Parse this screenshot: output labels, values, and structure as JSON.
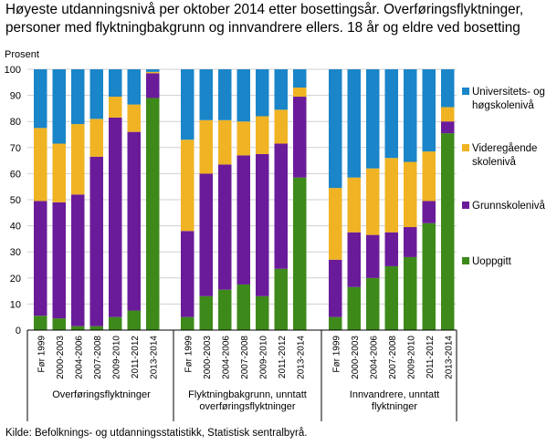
{
  "title": "Høyeste utdanningsnivå per oktober 2014 etter bosettingsår. Overføringsflyktninger, personer med flyktningbakgrunn og innvandrere ellers. 18 år og eldre ved bosetting",
  "source": "Kilde: Befolknings- og utdanningsstatistikk,  Statistisk sentralbyrå.",
  "chart_data": {
    "type": "bar",
    "stacked": true,
    "ylabel": "Prosent",
    "ylim": [
      0,
      100
    ],
    "yticks": [
      0,
      10,
      20,
      30,
      40,
      50,
      60,
      70,
      80,
      90,
      100
    ],
    "grid": true,
    "legend_position": "right",
    "categories": [
      "Før 1999",
      "2000-2003",
      "2004-2006",
      "2007-2008",
      "2009-2010",
      "2011-2012",
      "2013-2014"
    ],
    "groups": [
      {
        "name": "Overføringsflyktninger",
        "series": [
          {
            "name": "Uoppgitt",
            "values": [
              5.5,
              4.5,
              1.5,
              1.5,
              5,
              7.5,
              89
            ]
          },
          {
            "name": "Grunnskolenivå",
            "values": [
              44,
              44.5,
              50.5,
              65,
              76.5,
              68.5,
              9.5
            ]
          },
          {
            "name": "Videregående skolenivå",
            "values": [
              28,
              22.5,
              27,
              14.5,
              8,
              10.5,
              0.5
            ]
          },
          {
            "name": "Universitets- og høgskolenivå",
            "values": [
              22.5,
              28.5,
              21,
              19,
              10.5,
              13.5,
              1
            ]
          }
        ]
      },
      {
        "name": "Flyktningbakgrunn, unntatt overføringsflyktninger",
        "series": [
          {
            "name": "Uoppgitt",
            "values": [
              5,
              13,
              15.5,
              17.5,
              13,
              23.5,
              58.5
            ]
          },
          {
            "name": "Grunnskolenivå",
            "values": [
              33,
              47,
              48,
              49.5,
              54.5,
              48,
              31
            ]
          },
          {
            "name": "Videregående skolenivå",
            "values": [
              35,
              20.5,
              17,
              13,
              14.5,
              13,
              3.5
            ]
          },
          {
            "name": "Universitets- og høgskolenivå",
            "values": [
              27,
              19.5,
              19.5,
              20,
              18,
              15.5,
              7
            ]
          }
        ]
      },
      {
        "name": "Innvandrere, unntatt flyktninger",
        "series": [
          {
            "name": "Uoppgitt",
            "values": [
              5,
              16.5,
              20,
              24.5,
              28,
              41,
              75.5
            ]
          },
          {
            "name": "Grunnskolenivå",
            "values": [
              22,
              21,
              16.5,
              13,
              11.5,
              8.5,
              4.5
            ]
          },
          {
            "name": "Videregående skolenivå",
            "values": [
              27.5,
              21,
              25.5,
              28.5,
              25,
              19,
              5.5
            ]
          },
          {
            "name": "Universitets- og høgskolenivå",
            "values": [
              45.5,
              41.5,
              38,
              34,
              35.5,
              31.5,
              14.5
            ]
          }
        ]
      }
    ],
    "legend": [
      {
        "key": "Universitets- og høgskolenivå",
        "lines": [
          "Universitets- og",
          "høgskolenivå"
        ],
        "color": "#1a85c8"
      },
      {
        "key": "Videregående skolenivå",
        "lines": [
          "Videregående",
          "skolenivå"
        ],
        "color": "#f0b323"
      },
      {
        "key": "Grunnskolenivå",
        "lines": [
          "Grunnskolenivå"
        ],
        "color": "#6a1b9a"
      },
      {
        "key": "Uoppgitt",
        "lines": [
          "Uoppgitt"
        ],
        "color": "#3d8a1a"
      }
    ],
    "group_labels": [
      [
        "Overføringsflyktninger"
      ],
      [
        "Flyktningbakgrunn, unntatt",
        "overføringsflyktninger"
      ],
      [
        "Innvandrere, unntatt",
        "flyktninger"
      ]
    ]
  }
}
